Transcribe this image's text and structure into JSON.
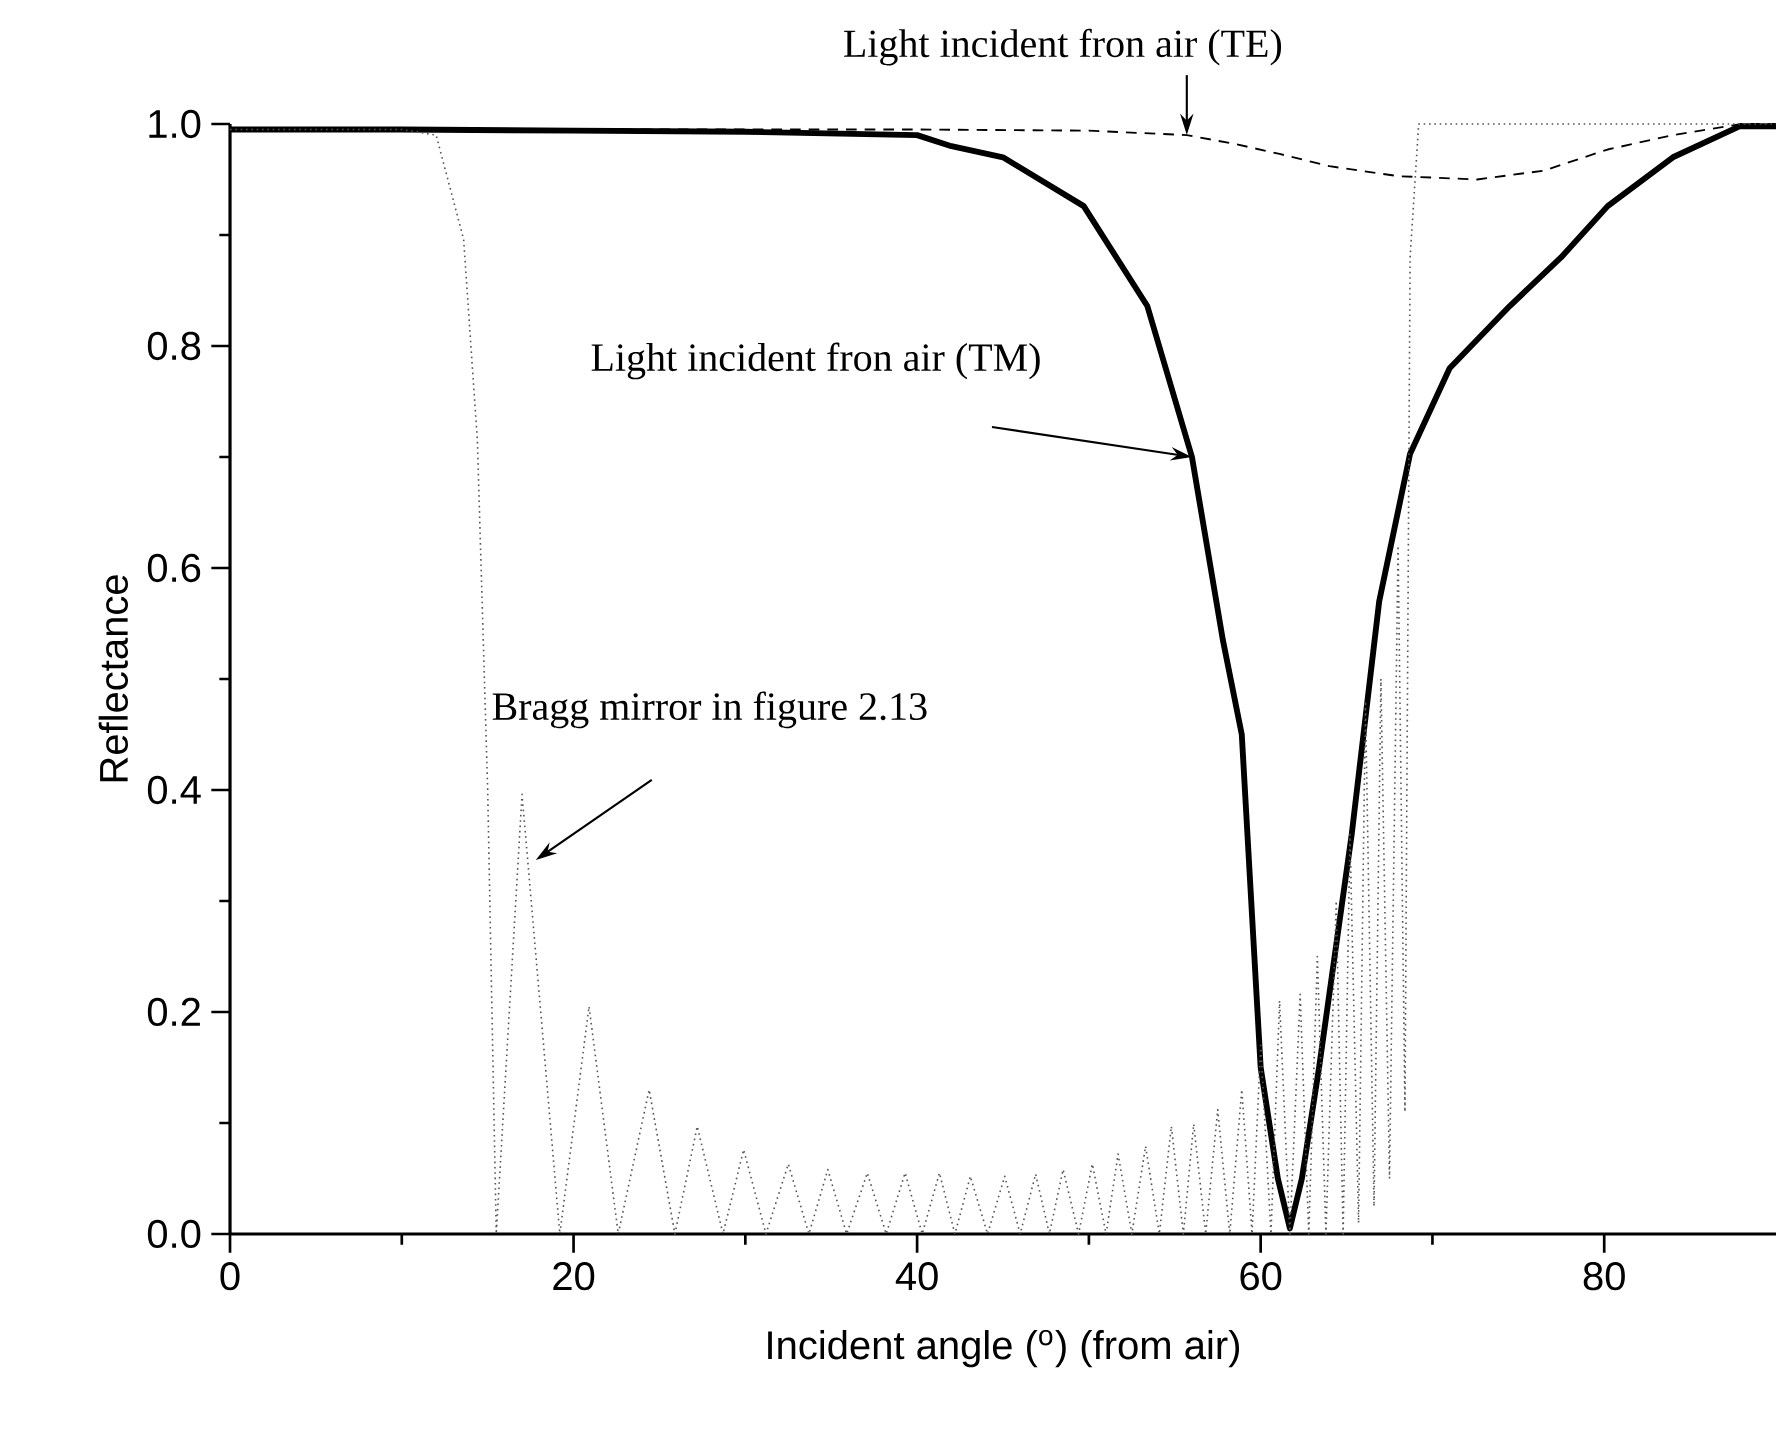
{
  "chart_data": {
    "type": "line",
    "xlabel": "Incident angle ($^{o}$) (from air)",
    "ylabel": "Reflectance",
    "xlim": [
      0,
      90
    ],
    "ylim": [
      0,
      1.0
    ],
    "xticks": [
      0,
      20,
      40,
      60,
      80
    ],
    "yticks": [
      {
        "value": 0,
        "label": "0.0"
      },
      0.2,
      0.4,
      0.6,
      0.8,
      {
        "value": 1.0,
        "label": "1.0"
      }
    ],
    "series": [
      {
        "color": "#000000",
        "line_style": "solid",
        "x": [
          0,
          10,
          20,
          30,
          40,
          42,
          45,
          49.7,
          53.4,
          56.0,
          57.8,
          58.9,
          60.0,
          61.0,
          61.7,
          62.4,
          63.4,
          65.3,
          66.9,
          68.7,
          71.0,
          74.5,
          77.5,
          80.2,
          84.0,
          87.9,
          90
        ],
        "values": [
          0.995,
          0.995,
          0.994,
          0.993,
          0.99,
          0.98,
          0.97,
          0.926,
          0.836,
          0.7,
          0.535,
          0.45,
          0.15,
          0.05,
          0.005,
          0.05,
          0.15,
          0.36,
          0.57,
          0.703,
          0.78,
          0.836,
          0.88,
          0.926,
          0.97,
          0.998,
          0.998
        ]
      },
      {
        "color": "#000000",
        "line_style": "dashed",
        "x": [
          0,
          20,
          40,
          50,
          55.7,
          58.5,
          61.1,
          64.0,
          68.0,
          72.6,
          76.5,
          80.2,
          84.0,
          88.0,
          90
        ],
        "values": [
          0.995,
          0.995,
          0.995,
          0.994,
          0.99,
          0.982,
          0.973,
          0.962,
          0.953,
          0.95,
          0.958,
          0.977,
          0.99,
          1.0,
          1.0
        ]
      },
      {
        "color": "#555555",
        "line_style": "dotted",
        "x": [
          0,
          10,
          12,
          13.6,
          14.4,
          15.0,
          15.5,
          17.0,
          19.2,
          20.9,
          22.6,
          24.4,
          25.9,
          27.2,
          28.7,
          29.9,
          31.2,
          32.5,
          33.7,
          34.8,
          35.9,
          37.1,
          38.2,
          39.3,
          40.3,
          41.3,
          42.2,
          43.1,
          44.1,
          45.1,
          46.0,
          46.9,
          47.7,
          48.5,
          49.4,
          50.2,
          51.0,
          51.7,
          52.5,
          53.3,
          54.1,
          54.8,
          55.5,
          56.1,
          56.8,
          57.5,
          58.2,
          58.9,
          59.5,
          60.0,
          60.6,
          61.1,
          61.7,
          62.3,
          62.8,
          63.3,
          63.8,
          64.4,
          64.8,
          65.2,
          65.7,
          66.1,
          66.6,
          67.0,
          67.5,
          68.0,
          68.4,
          68.7,
          69.2,
          80,
          90
        ],
        "values": [
          0.995,
          0.995,
          0.99,
          0.896,
          0.715,
          0.4,
          0,
          0.396,
          0,
          0.205,
          0,
          0.13,
          0,
          0.097,
          0,
          0.076,
          0,
          0.063,
          0,
          0.058,
          0,
          0.055,
          0,
          0.055,
          0,
          0.055,
          0,
          0.052,
          0,
          0.052,
          0,
          0.054,
          0,
          0.058,
          0,
          0.063,
          0,
          0.072,
          0,
          0.079,
          0,
          0.097,
          0,
          0.099,
          0,
          0.112,
          0,
          0.13,
          0,
          0.17,
          0,
          0.21,
          0,
          0.216,
          0,
          0.25,
          0,
          0.3,
          0,
          0.36,
          0.01,
          0.48,
          0.025,
          0.5,
          0.05,
          0.62,
          0.11,
          0.88,
          1.0,
          1.0,
          1.0
        ]
      }
    ],
    "annotations": [
      {
        "text": "Light incident fron air (TE)",
        "x": 55.7,
        "y": 0.99
      },
      {
        "text": "Light incident fron air (TM)",
        "x": 56.0,
        "y": 0.7
      },
      {
        "text": "Bragg mirror in figure 2.13",
        "x": 17.8,
        "y": 0.337
      }
    ]
  }
}
